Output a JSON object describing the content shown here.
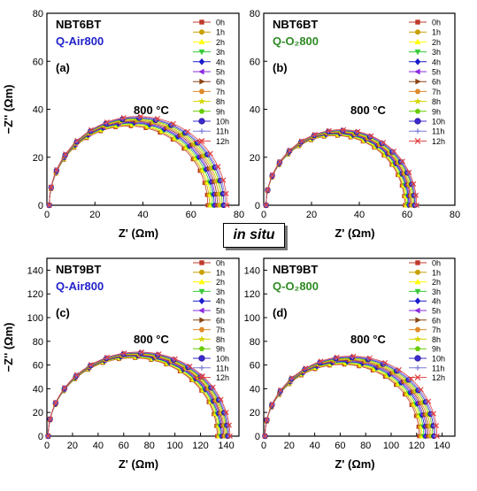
{
  "center_label": "in situ",
  "legend_labels": [
    "0h",
    "1h",
    "2h",
    "3h",
    "4h",
    "5h",
    "6h",
    "7h",
    "8h",
    "9h",
    "10h",
    "11h",
    "12h"
  ],
  "series_colors": [
    "#c0392b",
    "#c8a000",
    "#ffff00",
    "#33cc33",
    "#1a1acc",
    "#8a2be2",
    "#8b4513",
    "#e08a2a",
    "#d4d400",
    "#66cc00",
    "#3b2ad0",
    "#7a7ad8",
    "#e04040"
  ],
  "series_markers": [
    "square",
    "circle",
    "triangle-up",
    "triangle-down",
    "diamond",
    "triangle-left",
    "triangle-right",
    "hexagon",
    "star",
    "pentagon",
    "ball",
    "plus",
    "cross"
  ],
  "chart_data": [
    {
      "type": "scatter",
      "panel": "(a)",
      "sample": "NBT6BT",
      "condition": "Q-Air800",
      "condition_color": "#2222cc",
      "temperature": "800 °C",
      "xlabel": "Z' (Ωm)",
      "ylabel": "−Z'' (Ωm)",
      "xlim": [
        0,
        80
      ],
      "ylim": [
        0,
        80
      ],
      "xticks": [
        0,
        20,
        40,
        60,
        80
      ],
      "yticks": [
        0,
        20,
        40,
        60,
        80
      ],
      "legend_position": "top-right",
      "series": [
        {
          "name": "0h",
          "R0": 1,
          "R": 67
        },
        {
          "name": "1h",
          "R0": 1,
          "R": 67.7
        },
        {
          "name": "2h",
          "R0": 1,
          "R": 68.3
        },
        {
          "name": "3h",
          "R0": 1,
          "R": 69
        },
        {
          "name": "4h",
          "R0": 1,
          "R": 69.7
        },
        {
          "name": "5h",
          "R0": 1,
          "R": 70.3
        },
        {
          "name": "6h",
          "R0": 1,
          "R": 71
        },
        {
          "name": "7h",
          "R0": 1,
          "R": 71.7
        },
        {
          "name": "8h",
          "R0": 1,
          "R": 72.3
        },
        {
          "name": "9h",
          "R0": 1,
          "R": 73
        },
        {
          "name": "10h",
          "R0": 1,
          "R": 73.7
        },
        {
          "name": "11h",
          "R0": 1,
          "R": 74.3
        },
        {
          "name": "12h",
          "R0": 1,
          "R": 75
        }
      ]
    },
    {
      "type": "scatter",
      "panel": "(b)",
      "sample": "NBT6BT",
      "condition": "Q-O₂800",
      "condition_color": "#2e8b22",
      "temperature": "800 °C",
      "xlabel": "Z' (Ωm)",
      "ylabel": "",
      "xlim": [
        0,
        80
      ],
      "ylim": [
        0,
        80
      ],
      "xticks": [
        0,
        20,
        40,
        60,
        80
      ],
      "yticks": [
        0,
        20,
        40,
        60,
        80
      ],
      "legend_position": "top-right",
      "series": [
        {
          "name": "0h",
          "R0": 1,
          "R": 59
        },
        {
          "name": "1h",
          "R0": 1,
          "R": 59.4
        },
        {
          "name": "2h",
          "R0": 1,
          "R": 59.8
        },
        {
          "name": "3h",
          "R0": 1,
          "R": 60.3
        },
        {
          "name": "4h",
          "R0": 1,
          "R": 60.7
        },
        {
          "name": "5h",
          "R0": 1,
          "R": 61.1
        },
        {
          "name": "6h",
          "R0": 1,
          "R": 61.5
        },
        {
          "name": "7h",
          "R0": 1,
          "R": 61.9
        },
        {
          "name": "8h",
          "R0": 1,
          "R": 62.3
        },
        {
          "name": "9h",
          "R0": 1,
          "R": 62.8
        },
        {
          "name": "10h",
          "R0": 1,
          "R": 63.2
        },
        {
          "name": "11h",
          "R0": 1,
          "R": 63.6
        },
        {
          "name": "12h",
          "R0": 1,
          "R": 64
        }
      ]
    },
    {
      "type": "scatter",
      "panel": "(c)",
      "sample": "NBT9BT",
      "condition": "Q-Air800",
      "condition_color": "#2222cc",
      "temperature": "800 °C",
      "xlabel": "Z' (Ωm)",
      "ylabel": "−Z'' (Ωm)",
      "xlim": [
        0,
        150
      ],
      "ylim": [
        0,
        150
      ],
      "xticks": [
        0,
        20,
        40,
        60,
        80,
        100,
        120,
        140
      ],
      "yticks": [
        0,
        20,
        40,
        60,
        80,
        100,
        120,
        140
      ],
      "legend_position": "top-right",
      "series": [
        {
          "name": "0h",
          "R0": 1,
          "R": 133
        },
        {
          "name": "1h",
          "R0": 1,
          "R": 133.8
        },
        {
          "name": "2h",
          "R0": 1,
          "R": 134.7
        },
        {
          "name": "3h",
          "R0": 1,
          "R": 135.5
        },
        {
          "name": "4h",
          "R0": 1,
          "R": 136.3
        },
        {
          "name": "5h",
          "R0": 1,
          "R": 137.2
        },
        {
          "name": "6h",
          "R0": 1,
          "R": 138
        },
        {
          "name": "7h",
          "R0": 1,
          "R": 138.8
        },
        {
          "name": "8h",
          "R0": 1,
          "R": 139.7
        },
        {
          "name": "9h",
          "R0": 1,
          "R": 140.5
        },
        {
          "name": "10h",
          "R0": 1,
          "R": 141.3
        },
        {
          "name": "11h",
          "R0": 1,
          "R": 142.2
        },
        {
          "name": "12h",
          "R0": 1,
          "R": 143
        }
      ]
    },
    {
      "type": "scatter",
      "panel": "(d)",
      "sample": "NBT9BT",
      "condition": "Q-O₂800",
      "condition_color": "#2e8b22",
      "temperature": "800 °C",
      "xlabel": "Z' (Ωm)",
      "ylabel": "",
      "xlim": [
        0,
        150
      ],
      "ylim": [
        0,
        150
      ],
      "xticks": [
        0,
        20,
        40,
        60,
        80,
        100,
        120,
        140
      ],
      "yticks": [
        0,
        20,
        40,
        60,
        80,
        100,
        120,
        140
      ],
      "legend_position": "top-right",
      "series": [
        {
          "name": "0h",
          "R0": 1,
          "R": 122
        },
        {
          "name": "1h",
          "R0": 1,
          "R": 123.2
        },
        {
          "name": "2h",
          "R0": 1,
          "R": 124.3
        },
        {
          "name": "3h",
          "R0": 1,
          "R": 125.5
        },
        {
          "name": "4h",
          "R0": 1,
          "R": 126.7
        },
        {
          "name": "5h",
          "R0": 1,
          "R": 127.8
        },
        {
          "name": "6h",
          "R0": 1,
          "R": 129
        },
        {
          "name": "7h",
          "R0": 1,
          "R": 130.2
        },
        {
          "name": "8h",
          "R0": 1,
          "R": 131.3
        },
        {
          "name": "9h",
          "R0": 1,
          "R": 132.5
        },
        {
          "name": "10h",
          "R0": 1,
          "R": 133.7
        },
        {
          "name": "11h",
          "R0": 1,
          "R": 134.8
        },
        {
          "name": "12h",
          "R0": 1,
          "R": 136
        }
      ]
    }
  ]
}
